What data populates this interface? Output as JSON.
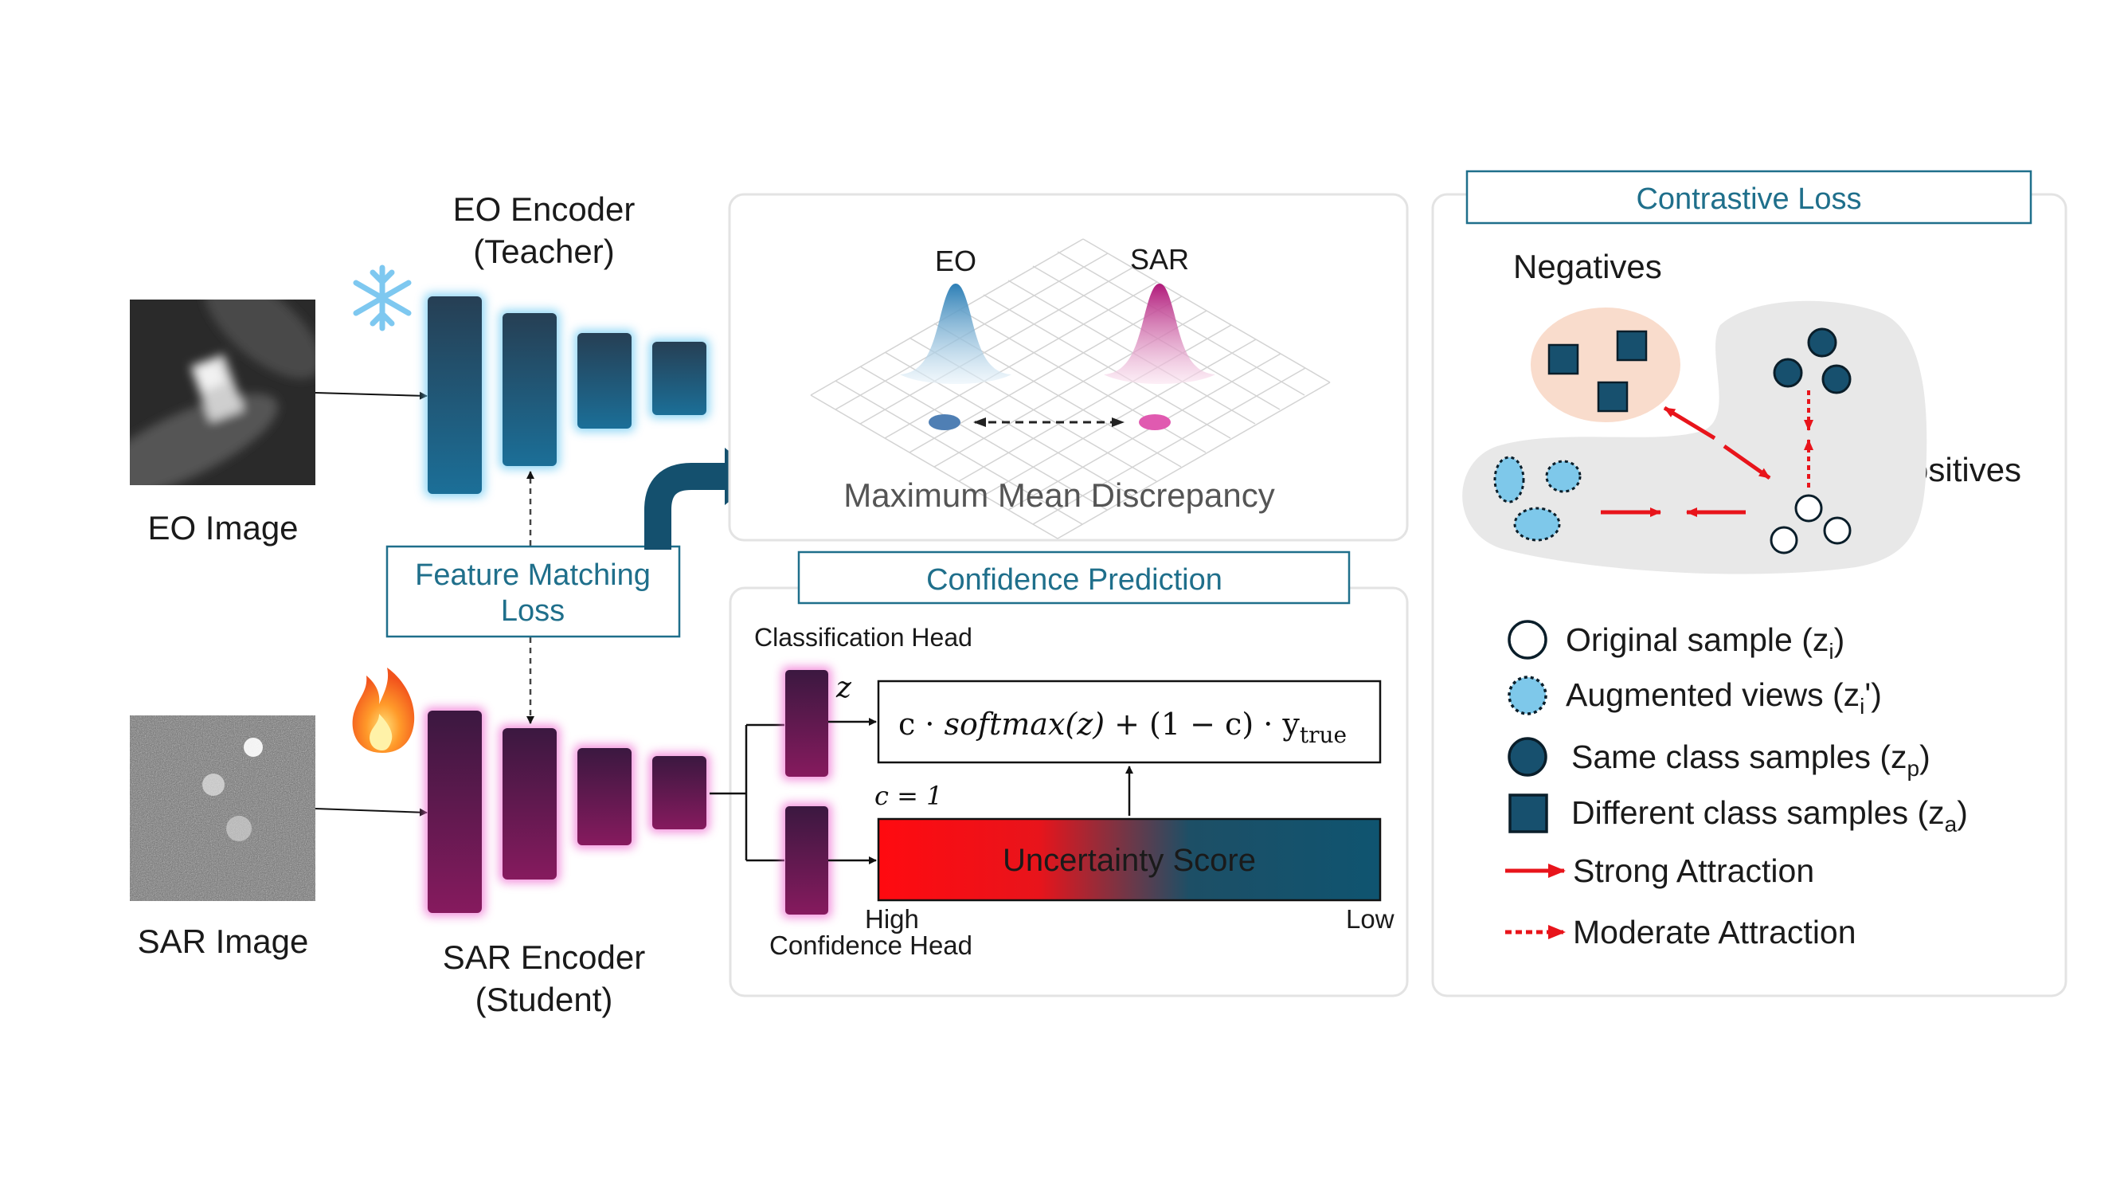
{
  "eo_image_label": "EO Image",
  "sar_image_label": "SAR Image",
  "eo_encoder": {
    "line1": "EO Encoder",
    "line2": "(Teacher)"
  },
  "sar_encoder": {
    "line1": "SAR Encoder",
    "line2": "(Student)"
  },
  "feature_matching": {
    "line1": "Feature Matching",
    "line2": "Loss"
  },
  "mmd": {
    "label": "Maximum Mean Discrepancy",
    "eo": "EO",
    "sar": "SAR"
  },
  "confidence": {
    "title": "Confidence Prediction",
    "classification_head": "Classification Head",
    "z_label": "z",
    "formula": {
      "c": "c",
      "dot1": " · ",
      "fn": "softmax",
      "arg": "(z)",
      "mid": " + (1 − c) · y",
      "sub": "true"
    },
    "c_eq": "c = 1",
    "uncertainty": "Uncertainty Score",
    "high": "High",
    "low": "Low",
    "confidence_head": "Confidence Head"
  },
  "contrastive": {
    "title": "Contrastive Loss",
    "negatives": "Negatives",
    "positives": "Positives",
    "legend": {
      "original": {
        "text": "Original sample (z",
        "sub": "i",
        "close": ")"
      },
      "augmented": {
        "text": "Augmented views (z",
        "sub": "i",
        "close": "')"
      },
      "same_class": {
        "text": "Same class samples (z",
        "sub": "p",
        "close": ")"
      },
      "different_class": {
        "text": "Different class samples (z",
        "sub": "a",
        "close": ")"
      },
      "strong": "Strong Attraction",
      "moderate": "Moderate Attraction"
    }
  },
  "colors": {
    "teacher": "#1a6a8c",
    "student": "#7a1a5c",
    "accent": "#1f6f8b",
    "red": "#e8141b",
    "navy": "#17506e"
  }
}
